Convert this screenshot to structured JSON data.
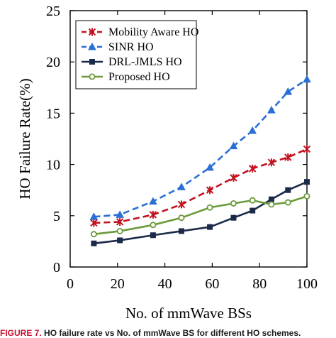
{
  "chart_data": {
    "type": "line",
    "xlabel": "No. of mmWave BSs",
    "ylabel": "HO Failure Rate(%)",
    "xlim": [
      0,
      100
    ],
    "ylim": [
      0,
      25
    ],
    "x_ticks": [
      0,
      20,
      40,
      60,
      80,
      100
    ],
    "y_ticks": [
      0,
      5,
      10,
      15,
      20,
      25
    ],
    "grid": false,
    "legend_position": "top-left",
    "series": [
      {
        "name": "Mobility Aware HO",
        "color": "#c1121f",
        "line_style": "dashed",
        "marker": "x-star",
        "x": [
          10,
          21,
          35,
          47,
          59,
          69,
          77,
          85,
          92,
          100
        ],
        "y": [
          4.3,
          4.4,
          5.1,
          6.1,
          7.5,
          8.7,
          9.6,
          10.2,
          10.7,
          11.5
        ]
      },
      {
        "name": "SINR HO",
        "color": "#2a6fd6",
        "line_style": "dashed",
        "marker": "triangle",
        "x": [
          10,
          21,
          35,
          47,
          59,
          69,
          77,
          85,
          92,
          100
        ],
        "y": [
          4.9,
          5.1,
          6.4,
          7.8,
          9.7,
          11.8,
          13.3,
          15.3,
          17.1,
          18.3
        ]
      },
      {
        "name": "DRL-JMLS HO",
        "color": "#1c2a4a",
        "line_style": "solid",
        "marker": "square",
        "x": [
          10,
          21,
          35,
          47,
          59,
          69,
          77,
          85,
          92,
          100
        ],
        "y": [
          2.3,
          2.6,
          3.1,
          3.5,
          3.9,
          4.8,
          5.5,
          6.6,
          7.5,
          8.3
        ]
      },
      {
        "name": "Proposed HO",
        "color": "#6a9a3a",
        "line_style": "solid",
        "marker": "circle",
        "x": [
          10,
          21,
          35,
          47,
          59,
          69,
          77,
          85,
          92,
          100
        ],
        "y": [
          3.2,
          3.5,
          4.1,
          4.8,
          5.8,
          6.2,
          6.5,
          6.1,
          6.3,
          6.9
        ]
      }
    ]
  },
  "caption": {
    "label": "FIGURE 7.",
    "text": "HO failure rate vs No. of mmWave BS for different HO schemes."
  }
}
